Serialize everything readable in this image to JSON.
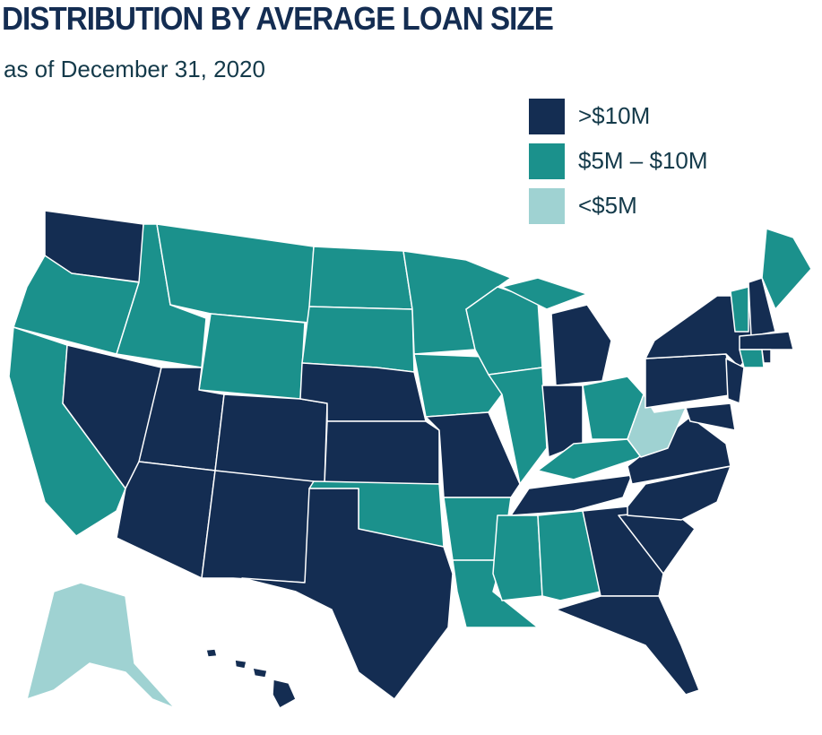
{
  "header": {
    "title": "DISTRIBUTION BY AVERAGE LOAN SIZE",
    "subtitle": "as of December 31, 2020"
  },
  "legend": {
    "items": [
      {
        "label": ">$10M",
        "color": "#142d52"
      },
      {
        "label": "$5M – $10M",
        "color": "#1b918c"
      },
      {
        "label": "<$5M",
        "color": "#9fd2d2"
      }
    ]
  }
}
